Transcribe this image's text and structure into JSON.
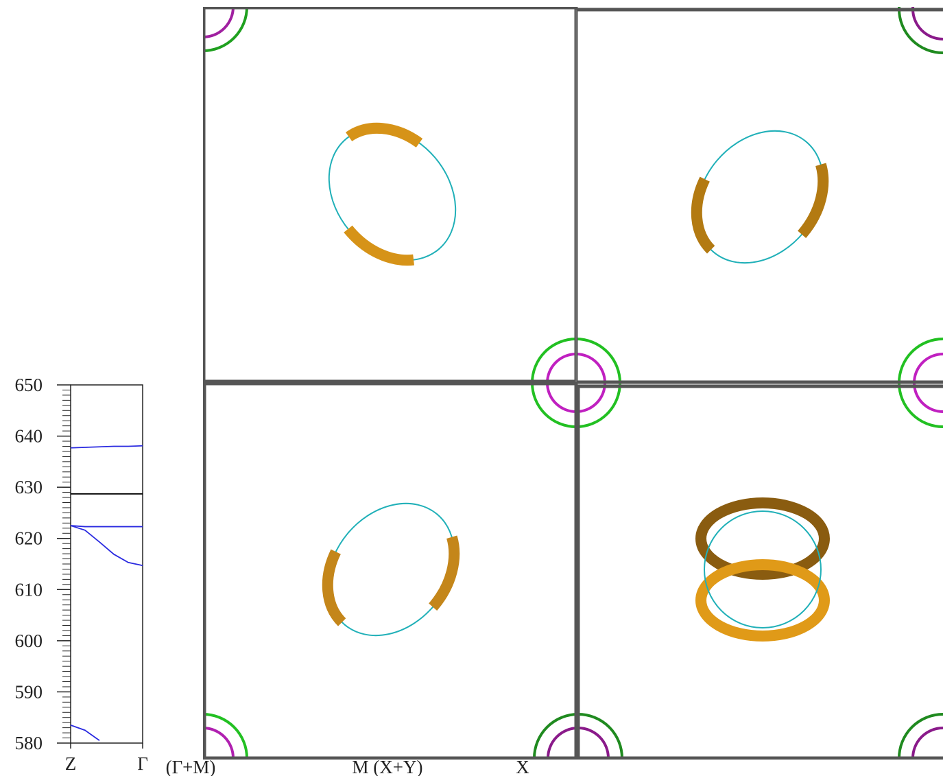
{
  "chart_data": {
    "type": "line",
    "x": [
      0,
      0.2,
      0.4,
      0.6,
      0.8,
      1
    ],
    "xlim": [
      0,
      1
    ],
    "xticks": [
      {
        "value": 0,
        "label": "Z"
      },
      {
        "value": 1,
        "label": "Γ"
      }
    ],
    "ylim": [
      580,
      650
    ],
    "yticks": [
      580,
      590,
      600,
      610,
      620,
      630,
      640,
      650
    ],
    "yminor_step": 1,
    "series": [
      {
        "color": "#2a2ae0",
        "values": [
          637.7,
          637.8,
          637.9,
          638,
          638,
          638.1
        ]
      },
      {
        "color": "#000000",
        "values": [
          628.7,
          628.7,
          628.7,
          628.7,
          628.7,
          628.7
        ]
      },
      {
        "color": "#2a2ae0",
        "values": [
          622.5,
          622.3,
          622.3,
          622.3,
          622.3,
          622.3
        ]
      },
      {
        "color": "#2a2ae0",
        "values": [
          622.5,
          621.6,
          619.3,
          616.9,
          615.3,
          614.7
        ]
      },
      {
        "color": "#2a2ae0",
        "values": [
          583.5,
          582.5,
          580.5,
          null,
          null,
          null
        ]
      }
    ]
  },
  "path_labels": [
    "(Γ+M)",
    "M (X+Y)",
    "X"
  ]
}
